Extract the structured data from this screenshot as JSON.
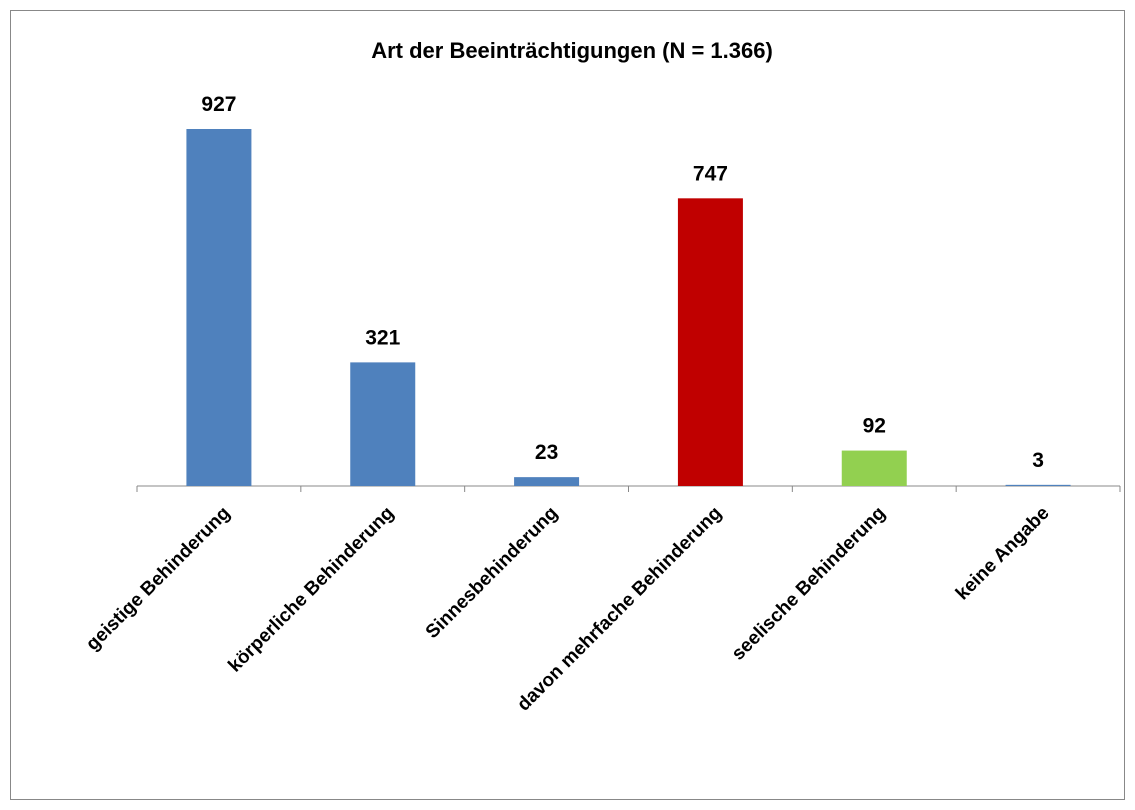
{
  "chart_data": {
    "type": "bar",
    "title": "Art der Beeinträchtigungen (N = 1.366)",
    "categories": [
      "geistige Behinderung",
      "körperliche Behinderung",
      "Sinnesbehinderung",
      "davon mehrfache Behinderung",
      "seelische Behinderung",
      "keine Angabe"
    ],
    "values": [
      927,
      321,
      23,
      747,
      92,
      3
    ],
    "colors": [
      "#4f81bd",
      "#4f81bd",
      "#4f81bd",
      "#c00000",
      "#92d050",
      "#4f81bd"
    ]
  }
}
